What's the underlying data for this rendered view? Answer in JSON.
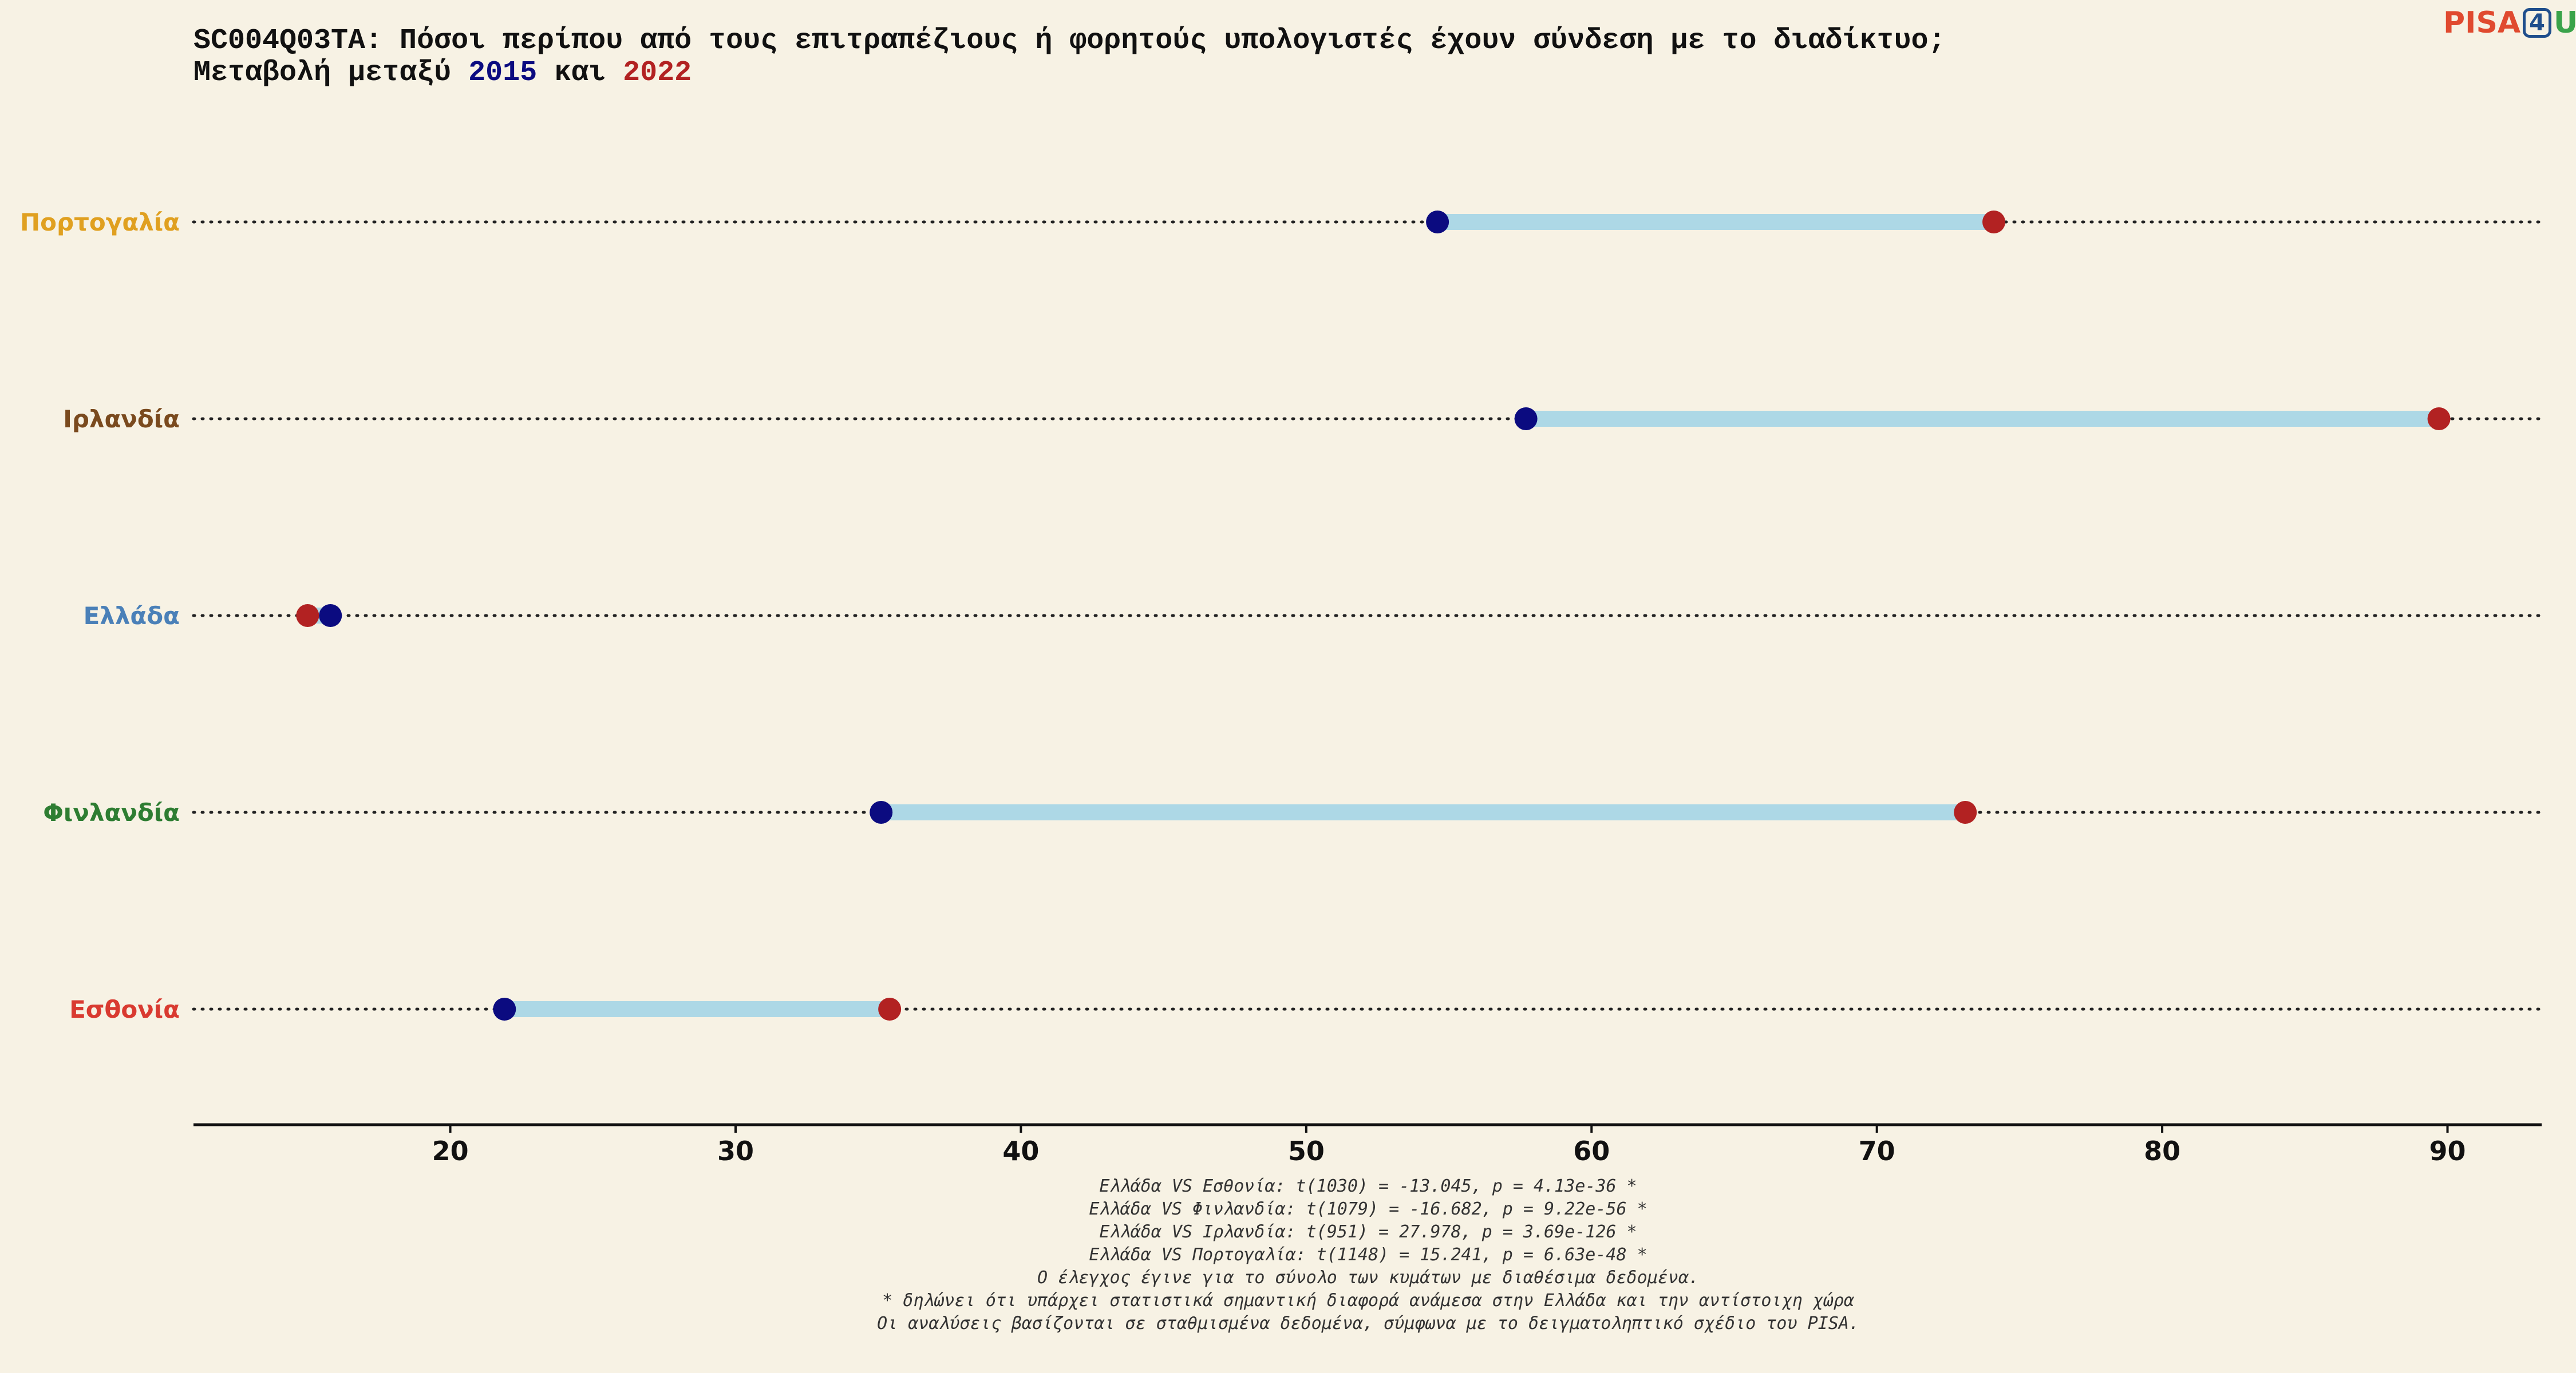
{
  "title": {
    "line1": "SC004Q03TA: Πόσοι περίπου από τους επιτραπέζιους ή φορητούς υπολογιστές έχουν σύνδεση με το διαδίκτυο;",
    "line2_prefix": "Μεταβολή μεταξύ ",
    "year1": "2015",
    "line2_middle": " και ",
    "year2": "2022"
  },
  "logo": {
    "pisa": "PISA",
    "four": "4",
    "u": "U"
  },
  "colors": {
    "year1": "#0b0b80",
    "year2": "#b22222",
    "segment": "#add8e6",
    "background": "#f7f2e4"
  },
  "chart_data": {
    "type": "dumbbell",
    "xlim": [
      11,
      93.3
    ],
    "xticks": [
      20,
      30,
      40,
      50,
      60,
      70,
      80,
      90
    ],
    "grid": "dotted horizontal guide per category",
    "categories": [
      {
        "name": "Πορτογαλία",
        "color": "#e0a020",
        "v2015": 54.6,
        "v2022": 74.1
      },
      {
        "name": "Ιρλανδία",
        "color": "#7a4a1e",
        "v2015": 57.7,
        "v2022": 89.7
      },
      {
        "name": "Ελλάδα",
        "color": "#4a80b8",
        "v2015": 15.8,
        "v2022": 15.0
      },
      {
        "name": "Φινλανδία",
        "color": "#2e7d32",
        "v2015": 35.1,
        "v2022": 73.1
      },
      {
        "name": "Εσθονία",
        "color": "#d93a30",
        "v2015": 21.9,
        "v2022": 35.4
      }
    ]
  },
  "footnotes": [
    "Ελλάδα VS Εσθονία: t(1030) = -13.045, p = 4.13e-36 *",
    "Ελλάδα VS Φινλανδία: t(1079) = -16.682, p = 9.22e-56 *",
    "Ελλάδα VS Ιρλανδία: t(951) = 27.978, p = 3.69e-126 *",
    "Ελλάδα VS Πορτογαλία: t(1148) = 15.241, p = 6.63e-48 *",
    "Ο έλεγχος έγινε για το σύνολο των κυμάτων με διαθέσιμα δεδομένα.",
    "* δηλώνει ότι υπάρχει στατιστικά σημαντική διαφορά ανάμεσα στην Ελλάδα και την αντίστοιχη χώρα",
    "Οι αναλύσεις βασίζονται σε σταθμισμένα δεδομένα, σύμφωνα με το δειγματοληπτικό σχέδιο του PISA."
  ]
}
